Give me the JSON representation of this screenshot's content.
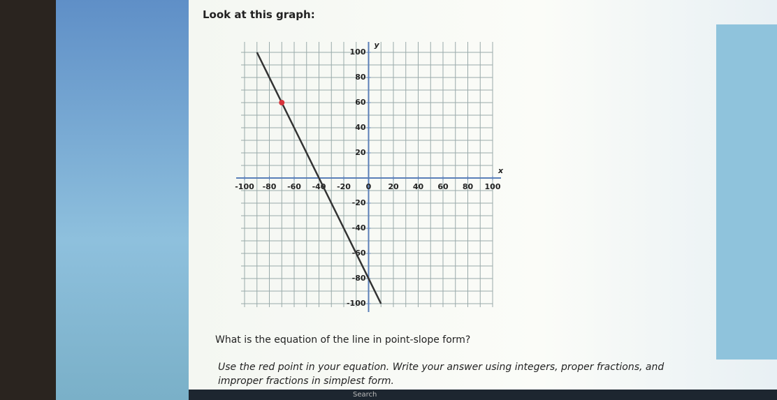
{
  "header": {
    "title": "Look at this graph:"
  },
  "chart_data": {
    "type": "line",
    "x": [
      -90,
      -70,
      -40,
      10
    ],
    "series": [
      {
        "color": "#333333",
        "values": [
          100,
          60,
          0,
          -100
        ]
      }
    ],
    "point": {
      "x": -70,
      "y": 60,
      "color": "#d8343c"
    },
    "xlim": [
      -100,
      100
    ],
    "ylim": [
      -100,
      100
    ],
    "xticks": [
      -100,
      -80,
      -60,
      -40,
      -20,
      20,
      40,
      60,
      80,
      100
    ],
    "yticks": [
      -100,
      -80,
      -60,
      -40,
      -20,
      20,
      40,
      60,
      80,
      100
    ],
    "origin_label": "0",
    "xlabel": "x",
    "ylabel": "y",
    "grid": true,
    "xgrid": [
      -100,
      -90,
      -80,
      -70,
      -60,
      -50,
      -40,
      -30,
      -20,
      -10,
      0,
      10,
      20,
      30,
      40,
      50,
      60,
      70,
      80,
      90,
      100
    ],
    "ygrid": [
      -100,
      -90,
      -80,
      -70,
      -60,
      -50,
      -40,
      -30,
      -20,
      -10,
      0,
      10,
      20,
      30,
      40,
      50,
      60,
      70,
      80,
      90,
      100
    ]
  },
  "question": "What is the equation of the line in point-slope form?",
  "instructions": [
    "Use the red point in your equation. Write your answer using integers, proper fractions, and",
    "improper fractions in simplest form."
  ],
  "taskbar": {
    "search": "Search"
  }
}
